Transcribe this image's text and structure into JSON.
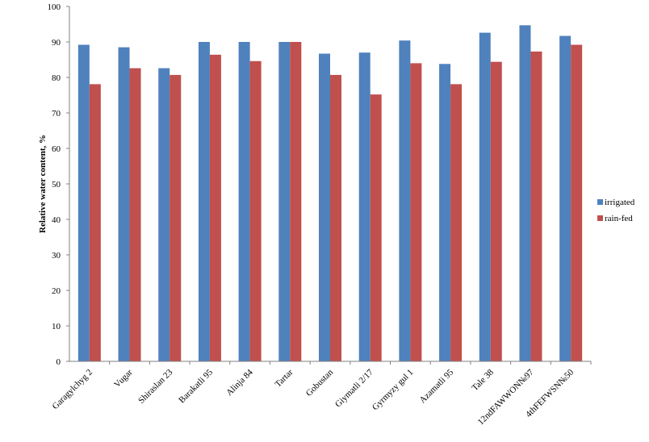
{
  "chart_data": {
    "type": "bar",
    "title": "",
    "xlabel": "",
    "ylabel": "Relative water content, %",
    "ylim": [
      0,
      100
    ],
    "yticks": [
      0,
      10,
      20,
      30,
      40,
      50,
      60,
      70,
      80,
      90,
      100
    ],
    "grid": false,
    "legend_position": "right",
    "categories": [
      "Garagylchyg 2",
      "Vugar",
      "Shiraslan 23",
      "Barakatli 95",
      "Alinja 84",
      "Tartar",
      "Gobustan",
      "Giymatli 2/17",
      "Gyrmyzy gul 1",
      "Azamatli 95",
      "Tale 38",
      "12ndFAWWON№97",
      "4thFEFWSN№50"
    ],
    "series": [
      {
        "name": "irrigated",
        "color": "#4F81BD",
        "values": [
          89.2,
          88.5,
          82.6,
          90.0,
          90.0,
          90.0,
          86.7,
          87.0,
          90.4,
          83.8,
          92.6,
          94.7,
          91.7
        ]
      },
      {
        "name": "rain-fed",
        "color": "#C0504D",
        "values": [
          78.1,
          82.6,
          80.7,
          86.4,
          84.6,
          90.0,
          80.7,
          75.2,
          84.0,
          78.1,
          84.4,
          87.3,
          89.2
        ]
      }
    ]
  }
}
